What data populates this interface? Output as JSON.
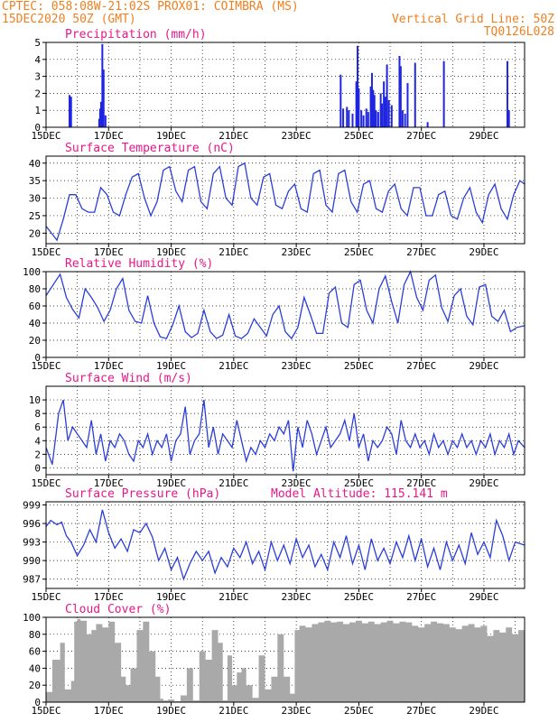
{
  "header": {
    "line1_left": "CPTEC:   058:08W-21:02S  PROX01: COIMBRA (MS)",
    "line2_left": "15DEC2020 50Z (GMT)",
    "line2_right": "Vertical Grid Line: 50Z",
    "line3_right": "TQ0126L028"
  },
  "colors": {
    "header_text": "#f07f1e",
    "panel_title": "#e8178a",
    "series_line": "#2b3ed8",
    "precip_bars": "#1f25e0",
    "cloud_fill": "#a9a9a9",
    "grid": "#000000"
  },
  "chart_data": [
    {
      "id": "precip",
      "type": "bar",
      "title": "Precipitation (mm/h)",
      "ylim": [
        0,
        5
      ],
      "yticks": [
        "0",
        "1",
        "2",
        "3",
        "4",
        "5"
      ],
      "xlim": [
        0,
        15.3
      ],
      "xtick_labels": [
        "15DEC",
        "17DEC",
        "19DEC",
        "21DEC",
        "23DEC",
        "25DEC",
        "27DEC",
        "29DEC"
      ],
      "bars": [
        [
          0.75,
          1.9
        ],
        [
          0.8,
          1.8
        ],
        [
          1.7,
          0.5
        ],
        [
          1.73,
          1.1
        ],
        [
          1.76,
          1.5
        ],
        [
          1.8,
          4.9
        ],
        [
          1.84,
          3.4
        ],
        [
          1.9,
          0.7
        ],
        [
          9.42,
          3.1
        ],
        [
          9.5,
          1.1
        ],
        [
          9.62,
          1.2
        ],
        [
          9.68,
          1.0
        ],
        [
          9.8,
          0.8
        ],
        [
          9.92,
          2.7
        ],
        [
          9.96,
          4.8
        ],
        [
          10.0,
          2.3
        ],
        [
          10.08,
          1.0
        ],
        [
          10.15,
          0.7
        ],
        [
          10.24,
          1.1
        ],
        [
          10.3,
          0.9
        ],
        [
          10.38,
          2.4
        ],
        [
          10.42,
          3.2
        ],
        [
          10.46,
          2.2
        ],
        [
          10.5,
          1.9
        ],
        [
          10.55,
          1.0
        ],
        [
          10.62,
          0.9
        ],
        [
          10.7,
          2.0
        ],
        [
          10.74,
          1.4
        ],
        [
          10.8,
          2.7
        ],
        [
          10.85,
          1.8
        ],
        [
          10.9,
          3.7
        ],
        [
          10.96,
          1.6
        ],
        [
          11.05,
          1.3
        ],
        [
          11.3,
          4.2
        ],
        [
          11.34,
          3.6
        ],
        [
          11.4,
          1.0
        ],
        [
          11.48,
          0.8
        ],
        [
          11.56,
          2.6
        ],
        [
          11.8,
          3.8
        ],
        [
          12.2,
          0.3
        ],
        [
          12.72,
          3.9
        ],
        [
          14.75,
          3.9
        ],
        [
          14.8,
          1.0
        ]
      ]
    },
    {
      "id": "temp",
      "type": "line",
      "title": "Surface Temperature (nC)",
      "ylim": [
        17,
        42
      ],
      "yticks": [
        "20",
        "25",
        "30",
        "35",
        "40"
      ],
      "ytick_values": [
        20,
        25,
        30,
        35,
        40
      ],
      "x": [
        0,
        0.35,
        0.55,
        0.75,
        0.95,
        1.15,
        1.35,
        1.55,
        1.75,
        1.95,
        2.15,
        2.35,
        2.55,
        2.75,
        2.95,
        3.15,
        3.35,
        3.55,
        3.75,
        3.95,
        4.15,
        4.35,
        4.55,
        4.75,
        4.95,
        5.15,
        5.35,
        5.55,
        5.75,
        5.95,
        6.15,
        6.35,
        6.55,
        6.75,
        6.95,
        7.15,
        7.35,
        7.55,
        7.75,
        7.95,
        8.15,
        8.35,
        8.55,
        8.75,
        8.95,
        9.15,
        9.35,
        9.55,
        9.75,
        9.95,
        10.15,
        10.35,
        10.55,
        10.75,
        10.95,
        11.15,
        11.35,
        11.55,
        11.75,
        11.95,
        12.15,
        12.35,
        12.55,
        12.75,
        12.95,
        13.15,
        13.35,
        13.55,
        13.75,
        13.95,
        14.15,
        14.35,
        14.55,
        14.75,
        14.95,
        15.15,
        15.3
      ],
      "y": [
        22,
        18,
        24,
        31,
        31,
        27,
        26,
        26,
        33,
        31,
        26,
        25,
        31,
        36,
        37,
        30,
        25,
        29,
        38,
        39,
        32,
        29,
        38,
        39,
        29,
        27,
        37,
        39,
        30,
        28,
        39,
        40,
        30,
        28,
        36,
        37,
        28,
        27,
        32,
        34,
        27,
        26,
        37,
        38,
        28,
        26,
        37,
        38,
        29,
        26,
        34,
        35,
        27,
        26,
        32,
        34,
        27,
        25,
        33,
        33,
        25,
        25,
        31,
        32,
        25,
        24,
        30,
        33,
        26,
        23,
        31,
        34,
        27,
        24,
        31,
        35,
        34
      ]
    },
    {
      "id": "rh",
      "type": "line",
      "title": "Relative Humidity (%)",
      "ylim": [
        0,
        100
      ],
      "yticks": [
        "0",
        "20",
        "40",
        "60",
        "80",
        "100"
      ],
      "ytick_values": [
        0,
        20,
        40,
        60,
        80,
        100
      ],
      "x": [
        0,
        0.25,
        0.45,
        0.65,
        0.85,
        1.05,
        1.25,
        1.45,
        1.65,
        1.85,
        2.05,
        2.25,
        2.45,
        2.65,
        2.85,
        3.05,
        3.25,
        3.45,
        3.65,
        3.85,
        4.05,
        4.25,
        4.45,
        4.65,
        4.85,
        5.05,
        5.25,
        5.45,
        5.65,
        5.85,
        6.05,
        6.25,
        6.45,
        6.65,
        6.85,
        7.05,
        7.25,
        7.45,
        7.65,
        7.85,
        8.05,
        8.25,
        8.45,
        8.65,
        8.85,
        9.05,
        9.25,
        9.45,
        9.65,
        9.85,
        10.05,
        10.25,
        10.45,
        10.65,
        10.85,
        11.05,
        11.25,
        11.45,
        11.65,
        11.85,
        12.05,
        12.25,
        12.45,
        12.65,
        12.85,
        13.05,
        13.25,
        13.45,
        13.65,
        13.85,
        14.05,
        14.25,
        14.45,
        14.65,
        14.85,
        15.05,
        15.3
      ],
      "y": [
        72,
        86,
        97,
        70,
        56,
        46,
        80,
        70,
        58,
        42,
        55,
        80,
        92,
        55,
        42,
        40,
        72,
        40,
        24,
        22,
        38,
        60,
        30,
        23,
        28,
        55,
        30,
        22,
        26,
        50,
        25,
        22,
        28,
        45,
        35,
        25,
        50,
        60,
        30,
        22,
        35,
        70,
        50,
        28,
        28,
        75,
        82,
        40,
        35,
        85,
        90,
        55,
        40,
        80,
        95,
        65,
        40,
        85,
        100,
        70,
        55,
        90,
        96,
        58,
        42,
        72,
        80,
        48,
        38,
        82,
        85,
        48,
        42,
        55,
        30,
        35,
        37
      ]
    },
    {
      "id": "wind",
      "type": "line",
      "title": "Surface Wind (m/s)",
      "ylim": [
        -1,
        12
      ],
      "yticks": [
        "0",
        "2",
        "4",
        "6",
        "8",
        "10"
      ],
      "ytick_values": [
        0,
        2,
        4,
        6,
        8,
        10
      ],
      "x": [
        0,
        0.2,
        0.4,
        0.55,
        0.7,
        0.85,
        1.0,
        1.15,
        1.3,
        1.45,
        1.6,
        1.75,
        1.9,
        2.05,
        2.2,
        2.35,
        2.5,
        2.65,
        2.8,
        2.95,
        3.1,
        3.25,
        3.4,
        3.55,
        3.7,
        3.85,
        4.0,
        4.15,
        4.3,
        4.45,
        4.6,
        4.75,
        4.9,
        5.05,
        5.2,
        5.35,
        5.5,
        5.65,
        5.8,
        5.95,
        6.1,
        6.25,
        6.4,
        6.55,
        6.7,
        6.85,
        7.0,
        7.15,
        7.3,
        7.45,
        7.6,
        7.75,
        7.9,
        8.05,
        8.2,
        8.35,
        8.5,
        8.65,
        8.8,
        8.95,
        9.1,
        9.25,
        9.4,
        9.55,
        9.7,
        9.85,
        10.0,
        10.15,
        10.3,
        10.45,
        10.6,
        10.75,
        10.9,
        11.05,
        11.2,
        11.35,
        11.5,
        11.65,
        11.8,
        11.95,
        12.1,
        12.25,
        12.4,
        12.55,
        12.7,
        12.85,
        13.0,
        13.15,
        13.3,
        13.45,
        13.6,
        13.75,
        13.9,
        14.05,
        14.2,
        14.35,
        14.5,
        14.65,
        14.8,
        14.95,
        15.1,
        15.3
      ],
      "y": [
        3,
        0.5,
        8,
        10,
        4,
        6,
        5,
        4,
        3,
        7,
        2,
        5,
        1,
        4,
        3,
        5,
        4,
        2,
        1,
        4,
        3,
        5,
        2,
        4,
        3,
        5,
        1,
        4,
        5,
        9,
        2,
        4,
        5,
        10,
        3,
        6,
        2,
        5,
        4,
        3,
        7,
        4,
        1,
        3,
        2,
        4,
        3,
        5,
        4,
        6,
        5,
        7,
        -0.5,
        6,
        3,
        7,
        5,
        2,
        4,
        6,
        3,
        4,
        5,
        7,
        4,
        8,
        3,
        5,
        1,
        4,
        3,
        4,
        6,
        5,
        2,
        7,
        4,
        3,
        5,
        3,
        4,
        2,
        5,
        3,
        4,
        2,
        4,
        3,
        5,
        3,
        4,
        2,
        4,
        3,
        5,
        2,
        4,
        3,
        5,
        2,
        4,
        3
      ]
    },
    {
      "id": "pres",
      "type": "line",
      "title": "Surface Pressure (hPa)",
      "annotation": "Model Altitude: 115.141  m",
      "ylim": [
        985.5,
        999.5
      ],
      "yticks": [
        "987",
        "990",
        "993",
        "996",
        "999"
      ],
      "ytick_values": [
        987,
        990,
        993,
        996,
        999
      ],
      "x": [
        0,
        0.15,
        0.35,
        0.5,
        0.65,
        0.8,
        1.0,
        1.2,
        1.4,
        1.6,
        1.8,
        2.0,
        2.2,
        2.4,
        2.6,
        2.8,
        3.0,
        3.2,
        3.4,
        3.6,
        3.8,
        4.0,
        4.2,
        4.4,
        4.6,
        4.8,
        5.0,
        5.2,
        5.4,
        5.6,
        5.8,
        6.0,
        6.2,
        6.4,
        6.6,
        6.8,
        7.0,
        7.2,
        7.4,
        7.6,
        7.8,
        8.0,
        8.2,
        8.4,
        8.6,
        8.8,
        9.0,
        9.2,
        9.4,
        9.6,
        9.8,
        10.0,
        10.2,
        10.4,
        10.6,
        10.8,
        11.0,
        11.2,
        11.4,
        11.6,
        11.8,
        12.0,
        12.2,
        12.4,
        12.6,
        12.8,
        13.0,
        13.2,
        13.4,
        13.6,
        13.8,
        14.0,
        14.2,
        14.4,
        14.6,
        14.8,
        15.0,
        15.3
      ],
      "y": [
        995.5,
        996.5,
        995.8,
        996.2,
        994.0,
        993.0,
        990.8,
        992.5,
        995.0,
        993.0,
        998.2,
        994.5,
        992.0,
        993.5,
        991.5,
        995.0,
        994.5,
        996.0,
        993.8,
        990.0,
        992.0,
        988.5,
        990.5,
        987.0,
        989.5,
        991.5,
        990.0,
        991.5,
        988.0,
        990.5,
        989.0,
        992.0,
        990.5,
        993.0,
        989.5,
        991.5,
        988.5,
        993.0,
        990.0,
        992.5,
        989.5,
        993.5,
        990.5,
        992.5,
        989.0,
        991.0,
        988.5,
        993.0,
        990.5,
        994.0,
        989.5,
        992.5,
        988.5,
        993.5,
        990.0,
        992.0,
        989.5,
        993.0,
        990.5,
        994.0,
        990.0,
        993.5,
        989.0,
        992.0,
        988.5,
        993.0,
        990.0,
        992.5,
        989.5,
        994.5,
        991.0,
        993.0,
        990.5,
        996.5,
        994.0,
        990.0,
        993.0,
        992.5
      ]
    },
    {
      "id": "cloud",
      "type": "area",
      "title": "Cloud Cover (%)",
      "ylim": [
        0,
        100
      ],
      "yticks": [
        "0",
        "20",
        "40",
        "60",
        "80",
        "100"
      ],
      "ytick_values": [
        0,
        20,
        40,
        60,
        80,
        100
      ],
      "x": [
        0,
        0.2,
        0.45,
        0.6,
        0.8,
        0.9,
        1.0,
        1.1,
        1.3,
        1.45,
        1.6,
        1.8,
        2.0,
        2.2,
        2.4,
        2.55,
        2.7,
        2.9,
        3.1,
        3.3,
        3.5,
        3.65,
        3.75,
        3.9,
        4.1,
        4.3,
        4.5,
        4.7,
        4.9,
        5.1,
        5.3,
        5.5,
        5.65,
        5.8,
        5.95,
        6.1,
        6.25,
        6.4,
        6.6,
        6.8,
        7.0,
        7.2,
        7.4,
        7.6,
        7.8,
        7.95,
        8.1,
        8.3,
        8.5,
        8.7,
        8.9,
        9.1,
        9.3,
        9.5,
        9.7,
        9.9,
        10.1,
        10.3,
        10.5,
        10.7,
        10.9,
        11.1,
        11.3,
        11.5,
        11.7,
        11.9,
        12.1,
        12.3,
        12.5,
        12.7,
        12.9,
        13.1,
        13.3,
        13.5,
        13.7,
        13.9,
        14.1,
        14.3,
        14.5,
        14.7,
        14.9,
        15.1,
        15.3
      ],
      "y": [
        12,
        50,
        70,
        15,
        25,
        95,
        98,
        96,
        80,
        85,
        92,
        88,
        95,
        70,
        30,
        20,
        40,
        85,
        95,
        60,
        30,
        4,
        2,
        3,
        1,
        8,
        40,
        2,
        60,
        50,
        85,
        70,
        2,
        55,
        20,
        35,
        40,
        20,
        5,
        55,
        15,
        30,
        80,
        30,
        10,
        85,
        90,
        88,
        92,
        94,
        96,
        94,
        95,
        92,
        94,
        96,
        93,
        95,
        92,
        94,
        96,
        93,
        95,
        94,
        90,
        88,
        92,
        95,
        93,
        92,
        88,
        86,
        90,
        92,
        88,
        90,
        78,
        85,
        82,
        88,
        80,
        85,
        86
      ]
    }
  ]
}
